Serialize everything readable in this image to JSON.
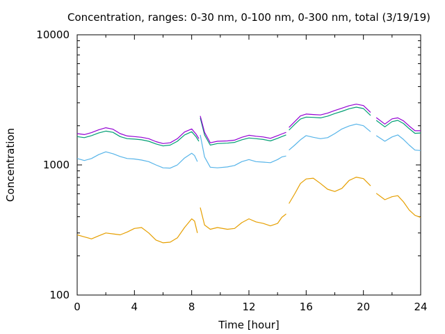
{
  "chart_data": {
    "type": "line",
    "title": "Concentration, ranges: 0-30 nm, 0-100 nm, 0-300 nm, total (3/19/19)",
    "xlabel": "Time [hour]",
    "ylabel": "Concentration",
    "xlim": [
      0,
      24
    ],
    "ylim": [
      100,
      10000
    ],
    "yscale": "log",
    "xticks": [
      "0",
      "4",
      "8",
      "12",
      "16",
      "20",
      "24"
    ],
    "yticks": [
      "100",
      "1000",
      "10000"
    ],
    "grid": false,
    "legend": "none",
    "series": [
      {
        "color": "#e69f00",
        "segments": [
          [
            [
              0,
              290
            ],
            [
              0.5,
              280
            ],
            [
              1,
              270
            ],
            [
              1.5,
              285
            ],
            [
              2,
              300
            ],
            [
              2.5,
              295
            ],
            [
              3,
              290
            ],
            [
              3.5,
              305
            ],
            [
              4,
              325
            ],
            [
              4.5,
              330
            ],
            [
              5,
              300
            ],
            [
              5.5,
              265
            ],
            [
              6,
              252
            ],
            [
              6.5,
              255
            ],
            [
              7,
              275
            ],
            [
              7.5,
              330
            ],
            [
              8,
              385
            ],
            [
              8.2,
              370
            ],
            [
              8.4,
              300
            ]
          ],
          [
            [
              8.6,
              470
            ],
            [
              8.9,
              345
            ],
            [
              9.3,
              320
            ],
            [
              9.8,
              330
            ],
            [
              10.5,
              320
            ],
            [
              11,
              325
            ],
            [
              11.5,
              360
            ],
            [
              12,
              385
            ],
            [
              12.5,
              365
            ],
            [
              13,
              355
            ],
            [
              13.5,
              340
            ],
            [
              14,
              355
            ],
            [
              14.3,
              395
            ],
            [
              14.6,
              420
            ]
          ],
          [
            [
              14.8,
              505
            ],
            [
              15.2,
              600
            ],
            [
              15.6,
              720
            ],
            [
              16,
              780
            ],
            [
              16.5,
              790
            ],
            [
              17,
              720
            ],
            [
              17.5,
              650
            ],
            [
              18,
              625
            ],
            [
              18.5,
              660
            ],
            [
              19,
              760
            ],
            [
              19.5,
              805
            ],
            [
              20,
              785
            ],
            [
              20.5,
              690
            ]
          ],
          [
            [
              20.9,
              605
            ],
            [
              21.5,
              540
            ],
            [
              22,
              570
            ],
            [
              22.4,
              580
            ],
            [
              22.8,
              520
            ],
            [
              23.2,
              450
            ],
            [
              23.6,
              410
            ],
            [
              24,
              395
            ]
          ]
        ]
      },
      {
        "color": "#56b4e9",
        "segments": [
          [
            [
              0,
              1120
            ],
            [
              0.5,
              1080
            ],
            [
              1,
              1120
            ],
            [
              1.5,
              1200
            ],
            [
              2,
              1260
            ],
            [
              2.5,
              1220
            ],
            [
              3,
              1160
            ],
            [
              3.5,
              1120
            ],
            [
              4,
              1110
            ],
            [
              4.5,
              1090
            ],
            [
              5,
              1060
            ],
            [
              5.5,
              1000
            ],
            [
              6,
              950
            ],
            [
              6.5,
              945
            ],
            [
              7,
              1000
            ],
            [
              7.5,
              1130
            ],
            [
              8,
              1230
            ],
            [
              8.2,
              1180
            ],
            [
              8.4,
              1060
            ]
          ],
          [
            [
              8.6,
              1700
            ],
            [
              8.9,
              1150
            ],
            [
              9.3,
              960
            ],
            [
              9.8,
              950
            ],
            [
              10.5,
              965
            ],
            [
              11,
              990
            ],
            [
              11.5,
              1060
            ],
            [
              12,
              1100
            ],
            [
              12.5,
              1060
            ],
            [
              13,
              1050
            ],
            [
              13.5,
              1040
            ],
            [
              14,
              1100
            ],
            [
              14.3,
              1150
            ],
            [
              14.6,
              1170
            ]
          ],
          [
            [
              14.8,
              1300
            ],
            [
              15.2,
              1420
            ],
            [
              15.6,
              1560
            ],
            [
              16,
              1680
            ],
            [
              16.5,
              1630
            ],
            [
              17,
              1590
            ],
            [
              17.5,
              1620
            ],
            [
              18,
              1740
            ],
            [
              18.5,
              1890
            ],
            [
              19,
              1990
            ],
            [
              19.5,
              2060
            ],
            [
              20,
              2000
            ],
            [
              20.5,
              1800
            ]
          ],
          [
            [
              20.9,
              1680
            ],
            [
              21.5,
              1520
            ],
            [
              22,
              1640
            ],
            [
              22.4,
              1700
            ],
            [
              22.8,
              1570
            ],
            [
              23.2,
              1420
            ],
            [
              23.6,
              1300
            ],
            [
              24,
              1290
            ]
          ]
        ]
      },
      {
        "color": "#009e73",
        "segments": [
          [
            [
              0,
              1650
            ],
            [
              0.5,
              1620
            ],
            [
              1,
              1680
            ],
            [
              1.5,
              1760
            ],
            [
              2,
              1820
            ],
            [
              2.5,
              1780
            ],
            [
              3,
              1650
            ],
            [
              3.5,
              1590
            ],
            [
              4,
              1580
            ],
            [
              4.5,
              1560
            ],
            [
              5,
              1520
            ],
            [
              5.5,
              1450
            ],
            [
              6,
              1400
            ],
            [
              6.5,
              1420
            ],
            [
              7,
              1520
            ],
            [
              7.5,
              1700
            ],
            [
              8,
              1800
            ],
            [
              8.3,
              1650
            ],
            [
              8.5,
              1520
            ]
          ],
          [
            [
              8.6,
              2300
            ],
            [
              8.9,
              1700
            ],
            [
              9.3,
              1420
            ],
            [
              9.8,
              1460
            ],
            [
              10.5,
              1470
            ],
            [
              11,
              1490
            ],
            [
              11.5,
              1560
            ],
            [
              12,
              1610
            ],
            [
              12.5,
              1590
            ],
            [
              13,
              1570
            ],
            [
              13.5,
              1530
            ],
            [
              14,
              1600
            ],
            [
              14.3,
              1650
            ],
            [
              14.6,
              1700
            ]
          ],
          [
            [
              14.8,
              1850
            ],
            [
              15.2,
              2050
            ],
            [
              15.6,
              2250
            ],
            [
              16,
              2330
            ],
            [
              16.5,
              2320
            ],
            [
              17,
              2300
            ],
            [
              17.5,
              2370
            ],
            [
              18,
              2480
            ],
            [
              18.5,
              2580
            ],
            [
              19,
              2700
            ],
            [
              19.5,
              2780
            ],
            [
              20,
              2710
            ],
            [
              20.5,
              2400
            ]
          ],
          [
            [
              20.9,
              2200
            ],
            [
              21.5,
              1960
            ],
            [
              22,
              2150
            ],
            [
              22.4,
              2200
            ],
            [
              22.8,
              2080
            ],
            [
              23.2,
              1900
            ],
            [
              23.6,
              1750
            ],
            [
              24,
              1760
            ]
          ]
        ]
      },
      {
        "color": "#9400d3",
        "segments": [
          [
            [
              0,
              1740
            ],
            [
              0.5,
              1710
            ],
            [
              1,
              1770
            ],
            [
              1.5,
              1860
            ],
            [
              2,
              1930
            ],
            [
              2.5,
              1880
            ],
            [
              3,
              1740
            ],
            [
              3.5,
              1670
            ],
            [
              4,
              1650
            ],
            [
              4.5,
              1630
            ],
            [
              5,
              1590
            ],
            [
              5.5,
              1510
            ],
            [
              6,
              1460
            ],
            [
              6.5,
              1480
            ],
            [
              7,
              1590
            ],
            [
              7.5,
              1790
            ],
            [
              8,
              1890
            ],
            [
              8.3,
              1730
            ],
            [
              8.5,
              1590
            ]
          ],
          [
            [
              8.6,
              2380
            ],
            [
              8.9,
              1780
            ],
            [
              9.3,
              1480
            ],
            [
              9.8,
              1520
            ],
            [
              10.5,
              1530
            ],
            [
              11,
              1550
            ],
            [
              11.5,
              1630
            ],
            [
              12,
              1690
            ],
            [
              12.5,
              1660
            ],
            [
              13,
              1640
            ],
            [
              13.5,
              1600
            ],
            [
              14,
              1680
            ],
            [
              14.3,
              1730
            ],
            [
              14.6,
              1780
            ]
          ],
          [
            [
              14.8,
              1940
            ],
            [
              15.2,
              2150
            ],
            [
              15.6,
              2380
            ],
            [
              16,
              2460
            ],
            [
              16.5,
              2440
            ],
            [
              17,
              2420
            ],
            [
              17.5,
              2500
            ],
            [
              18,
              2620
            ],
            [
              18.5,
              2730
            ],
            [
              19,
              2850
            ],
            [
              19.5,
              2930
            ],
            [
              20,
              2860
            ],
            [
              20.5,
              2530
            ]
          ],
          [
            [
              20.9,
              2310
            ],
            [
              21.5,
              2060
            ],
            [
              22,
              2260
            ],
            [
              22.4,
              2300
            ],
            [
              22.8,
              2180
            ],
            [
              23.2,
              1990
            ],
            [
              23.6,
              1830
            ],
            [
              24,
              1830
            ]
          ]
        ]
      }
    ]
  }
}
